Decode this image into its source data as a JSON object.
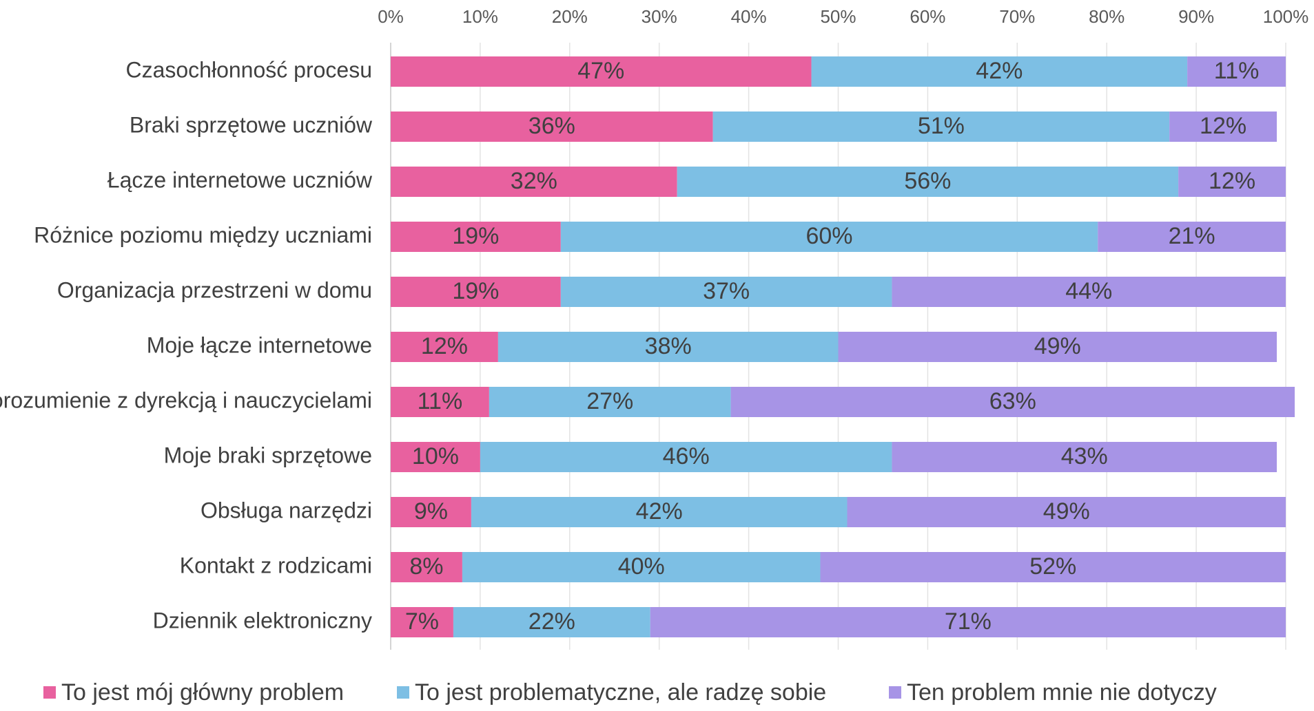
{
  "chart_data": {
    "type": "bar",
    "orientation": "horizontal",
    "stacked": true,
    "percent_scale": true,
    "xlim": [
      0,
      100
    ],
    "x_ticks": [
      "0%",
      "10%",
      "20%",
      "30%",
      "40%",
      "50%",
      "60%",
      "70%",
      "80%",
      "90%",
      "100%"
    ],
    "grid": true,
    "x_axis_position": "top",
    "legend_position": "bottom",
    "categories": [
      "Czasochłonność procesu",
      "Braki sprzętowe uczniów",
      "Łącze internetowe uczniów",
      "Różnice poziomu między uczniami",
      "Organizacja przestrzeni w domu",
      "Moje łącze internetowe",
      "Porozumienie z dyrekcją i nauczycielami",
      "Moje braki sprzętowe",
      "Obsługa narzędzi",
      "Kontakt z rodzicami",
      "Dziennik elektroniczny"
    ],
    "series": [
      {
        "name": "To jest mój główny problem",
        "color": "#e8619f",
        "values": [
          47,
          36,
          32,
          19,
          19,
          12,
          11,
          10,
          9,
          8,
          7
        ],
        "labels": [
          "47%",
          "36%",
          "32%",
          "19%",
          "19%",
          "12%",
          "11%",
          "10%",
          "9%",
          "8%",
          "7%"
        ]
      },
      {
        "name": "To jest problematyczne, ale radzę sobie",
        "color": "#7dbfe4",
        "values": [
          42,
          51,
          56,
          60,
          37,
          38,
          27,
          46,
          42,
          40,
          22
        ],
        "labels": [
          "42%",
          "51%",
          "56%",
          "60%",
          "37%",
          "38%",
          "27%",
          "46%",
          "42%",
          "40%",
          "22%"
        ]
      },
      {
        "name": "Ten problem mnie nie dotyczy",
        "color": "#a794e6",
        "values": [
          11,
          12,
          12,
          21,
          44,
          49,
          63,
          43,
          49,
          52,
          71
        ],
        "labels": [
          "11%",
          "12%",
          "12%",
          "21%",
          "44%",
          "49%",
          "63%",
          "43%",
          "49%",
          "52%",
          "71%"
        ]
      }
    ]
  }
}
